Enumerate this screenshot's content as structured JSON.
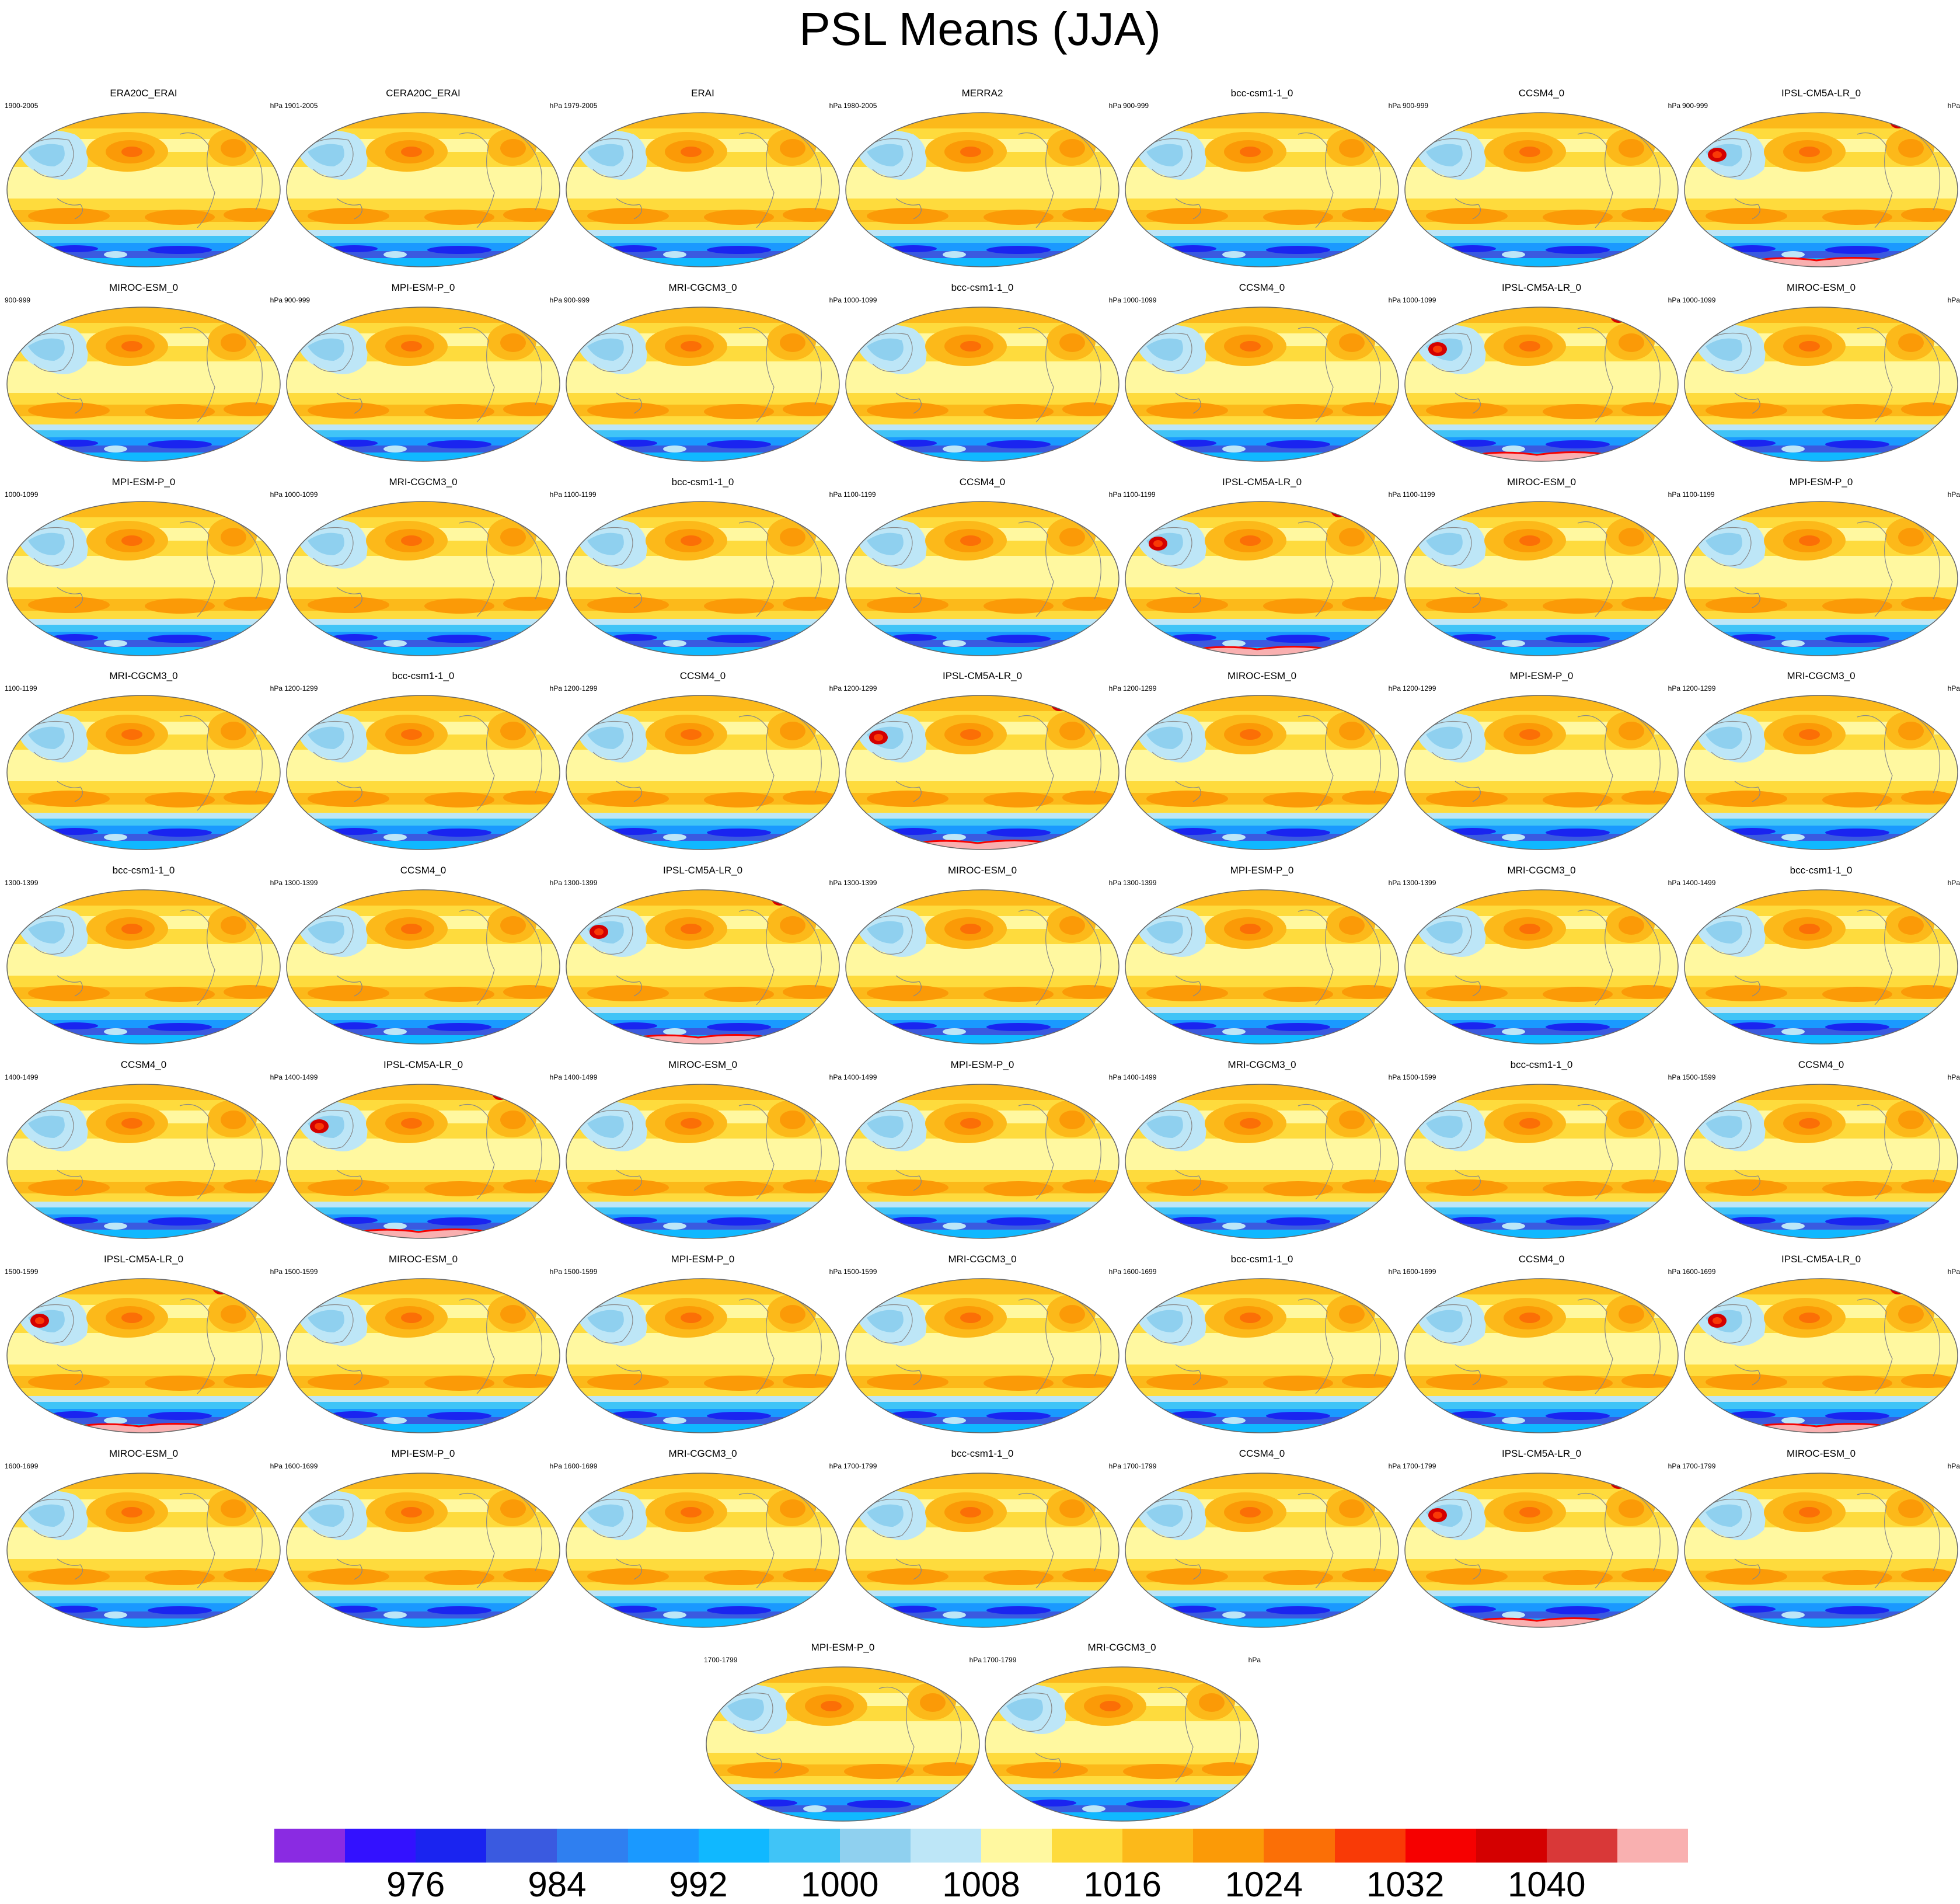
{
  "title": "PSL Means (JJA)",
  "unit": "hPa",
  "map_content": {
    "variable": "PSL",
    "projection": "robinson",
    "panel_layout": "9 rows x 7 columns, last row with 2 centered panels"
  },
  "panels": [
    {
      "title": "ERA20C_ERAI",
      "period": "1900-2005",
      "unit": "hPa"
    },
    {
      "title": "CERA20C_ERAI",
      "period": "1901-2005",
      "unit": "hPa"
    },
    {
      "title": "ERAI",
      "period": "1979-2005",
      "unit": "hPa"
    },
    {
      "title": "MERRA2",
      "period": "1980-2005",
      "unit": "hPa"
    },
    {
      "title": "bcc-csm1-1_0",
      "period": "900-999",
      "unit": "hPa"
    },
    {
      "title": "CCSM4_0",
      "period": "900-999",
      "unit": "hPa"
    },
    {
      "title": "IPSL-CM5A-LR_0",
      "period": "900-999",
      "unit": "hPa"
    },
    {
      "title": "MIROC-ESM_0",
      "period": "900-999",
      "unit": "hPa"
    },
    {
      "title": "MPI-ESM-P_0",
      "period": "900-999",
      "unit": "hPa"
    },
    {
      "title": "MRI-CGCM3_0",
      "period": "900-999",
      "unit": "hPa"
    },
    {
      "title": "bcc-csm1-1_0",
      "period": "1000-1099",
      "unit": "hPa"
    },
    {
      "title": "CCSM4_0",
      "period": "1000-1099",
      "unit": "hPa"
    },
    {
      "title": "IPSL-CM5A-LR_0",
      "period": "1000-1099",
      "unit": "hPa"
    },
    {
      "title": "MIROC-ESM_0",
      "period": "1000-1099",
      "unit": "hPa"
    },
    {
      "title": "MPI-ESM-P_0",
      "period": "1000-1099",
      "unit": "hPa"
    },
    {
      "title": "MRI-CGCM3_0",
      "period": "1000-1099",
      "unit": "hPa"
    },
    {
      "title": "bcc-csm1-1_0",
      "period": "1100-1199",
      "unit": "hPa"
    },
    {
      "title": "CCSM4_0",
      "period": "1100-1199",
      "unit": "hPa"
    },
    {
      "title": "IPSL-CM5A-LR_0",
      "period": "1100-1199",
      "unit": "hPa"
    },
    {
      "title": "MIROC-ESM_0",
      "period": "1100-1199",
      "unit": "hPa"
    },
    {
      "title": "MPI-ESM-P_0",
      "period": "1100-1199",
      "unit": "hPa"
    },
    {
      "title": "MRI-CGCM3_0",
      "period": "1100-1199",
      "unit": "hPa"
    },
    {
      "title": "bcc-csm1-1_0",
      "period": "1200-1299",
      "unit": "hPa"
    },
    {
      "title": "CCSM4_0",
      "period": "1200-1299",
      "unit": "hPa"
    },
    {
      "title": "IPSL-CM5A-LR_0",
      "period": "1200-1299",
      "unit": "hPa"
    },
    {
      "title": "MIROC-ESM_0",
      "period": "1200-1299",
      "unit": "hPa"
    },
    {
      "title": "MPI-ESM-P_0",
      "period": "1200-1299",
      "unit": "hPa"
    },
    {
      "title": "MRI-CGCM3_0",
      "period": "1200-1299",
      "unit": "hPa"
    },
    {
      "title": "bcc-csm1-1_0",
      "period": "1300-1399",
      "unit": "hPa"
    },
    {
      "title": "CCSM4_0",
      "period": "1300-1399",
      "unit": "hPa"
    },
    {
      "title": "IPSL-CM5A-LR_0",
      "period": "1300-1399",
      "unit": "hPa"
    },
    {
      "title": "MIROC-ESM_0",
      "period": "1300-1399",
      "unit": "hPa"
    },
    {
      "title": "MPI-ESM-P_0",
      "period": "1300-1399",
      "unit": "hPa"
    },
    {
      "title": "MRI-CGCM3_0",
      "period": "1300-1399",
      "unit": "hPa"
    },
    {
      "title": "bcc-csm1-1_0",
      "period": "1400-1499",
      "unit": "hPa"
    },
    {
      "title": "CCSM4_0",
      "period": "1400-1499",
      "unit": "hPa"
    },
    {
      "title": "IPSL-CM5A-LR_0",
      "period": "1400-1499",
      "unit": "hPa"
    },
    {
      "title": "MIROC-ESM_0",
      "period": "1400-1499",
      "unit": "hPa"
    },
    {
      "title": "MPI-ESM-P_0",
      "period": "1400-1499",
      "unit": "hPa"
    },
    {
      "title": "MRI-CGCM3_0",
      "period": "1400-1499",
      "unit": "hPa"
    },
    {
      "title": "bcc-csm1-1_0",
      "period": "1500-1599",
      "unit": "hPa"
    },
    {
      "title": "CCSM4_0",
      "period": "1500-1599",
      "unit": "hPa"
    },
    {
      "title": "IPSL-CM5A-LR_0",
      "period": "1500-1599",
      "unit": "hPa"
    },
    {
      "title": "MIROC-ESM_0",
      "period": "1500-1599",
      "unit": "hPa"
    },
    {
      "title": "MPI-ESM-P_0",
      "period": "1500-1599",
      "unit": "hPa"
    },
    {
      "title": "MRI-CGCM3_0",
      "period": "1500-1599",
      "unit": "hPa"
    },
    {
      "title": "bcc-csm1-1_0",
      "period": "1600-1699",
      "unit": "hPa"
    },
    {
      "title": "CCSM4_0",
      "period": "1600-1699",
      "unit": "hPa"
    },
    {
      "title": "IPSL-CM5A-LR_0",
      "period": "1600-1699",
      "unit": "hPa"
    },
    {
      "title": "MIROC-ESM_0",
      "period": "1600-1699",
      "unit": "hPa"
    },
    {
      "title": "MPI-ESM-P_0",
      "period": "1600-1699",
      "unit": "hPa"
    },
    {
      "title": "MRI-CGCM3_0",
      "period": "1600-1699",
      "unit": "hPa"
    },
    {
      "title": "bcc-csm1-1_0",
      "period": "1700-1799",
      "unit": "hPa"
    },
    {
      "title": "CCSM4_0",
      "period": "1700-1799",
      "unit": "hPa"
    },
    {
      "title": "IPSL-CM5A-LR_0",
      "period": "1700-1799",
      "unit": "hPa"
    },
    {
      "title": "MIROC-ESM_0",
      "period": "1700-1799",
      "unit": "hPa"
    },
    {
      "title": "MPI-ESM-P_0",
      "period": "1700-1799",
      "unit": "hPa"
    },
    {
      "title": "MRI-CGCM3_0",
      "period": "1700-1799",
      "unit": "hPa"
    }
  ],
  "colorbar": {
    "colors": [
      "#8a2be2",
      "#3311ff",
      "#1a24f0",
      "#3a5ae0",
      "#2f7ff0",
      "#1a99ff",
      "#10b8ff",
      "#40c4f7",
      "#8fd0ef",
      "#bde6f7",
      "#fff8a0",
      "#fedb3d",
      "#fcb91a",
      "#fb9a07",
      "#fb6f06",
      "#f93a06",
      "#f60000",
      "#d40000",
      "#d93838",
      "#f9b0b0"
    ],
    "ticks": [
      "976",
      "984",
      "992",
      "1000",
      "1008",
      "1016",
      "1024",
      "1032",
      "1040"
    ],
    "tick_after_box": [
      2,
      4,
      6,
      8,
      10,
      12,
      14,
      16,
      18
    ]
  }
}
